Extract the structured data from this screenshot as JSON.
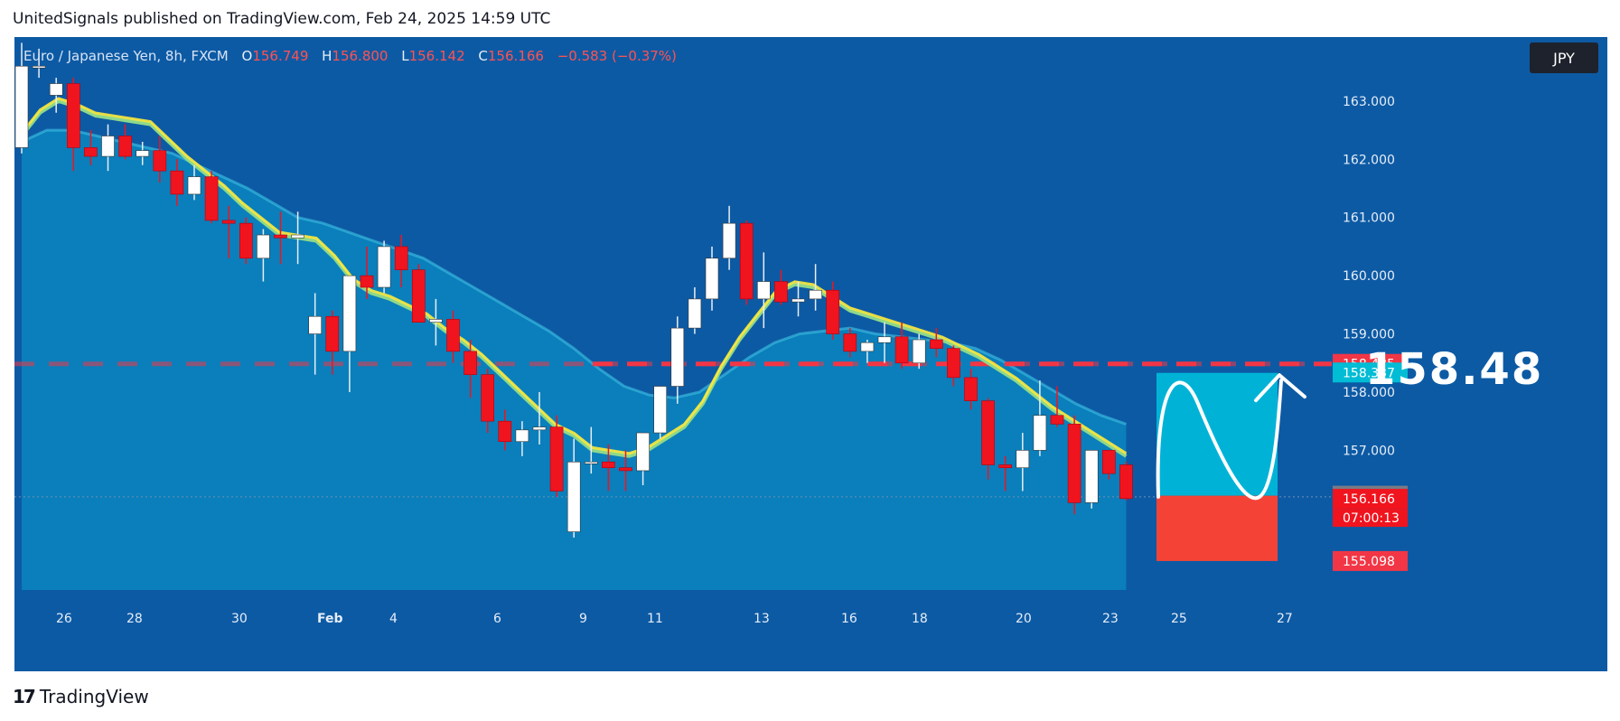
{
  "header": {
    "published_by": "UnitedSignals published on TradingView.com, Feb 24, 2025 14:59 UTC"
  },
  "legend": {
    "symbol": "Euro / Japanese Yen, 8h, FXCM",
    "open_label": "O",
    "open": "156.749",
    "high_label": "H",
    "high": "156.800",
    "low_label": "L",
    "low": "156.142",
    "close_label": "C",
    "close": "156.166",
    "change": "−0.583 (−0.37%)"
  },
  "currency_button": "JPY",
  "projection": {
    "target_label": "158.48"
  },
  "footer": {
    "brand": "TradingView",
    "mark": "17"
  },
  "colors": {
    "panel_bg": "#0d5aa4",
    "cloud_fill": "#0a86bf",
    "cloud_top": "#38b6dd",
    "up_candle": "#ffffff",
    "down_candle": "#f0141e",
    "ema_fast": "#ffeb3b",
    "ema_slow": "#8fd88a",
    "target_line": "#f23645",
    "target_zone": "#00b3d6",
    "stop_zone": "#f44336"
  },
  "chart_data": {
    "type": "candlestick",
    "symbol": "EURJPY",
    "timeframe": "8h",
    "ylim": [
      154.6,
      164.1
    ],
    "y_ticks": [
      "163.000",
      "162.000",
      "161.000",
      "160.000",
      "159.000",
      "158.000",
      "157.000"
    ],
    "x_ticks": [
      "26",
      "28",
      "30",
      "Feb",
      "4",
      "6",
      "9",
      "11",
      "13",
      "16",
      "18",
      "20",
      "23",
      "25",
      "27"
    ],
    "candles": [
      {
        "o": 162.2,
        "h": 164.0,
        "l": 162.1,
        "c": 163.6
      },
      {
        "o": 163.6,
        "h": 163.9,
        "l": 163.4,
        "c": 163.6
      },
      {
        "o": 163.1,
        "h": 163.4,
        "l": 162.8,
        "c": 163.3
      },
      {
        "o": 163.3,
        "h": 163.4,
        "l": 161.8,
        "c": 162.2
      },
      {
        "o": 162.2,
        "h": 162.5,
        "l": 161.9,
        "c": 162.05
      },
      {
        "o": 162.05,
        "h": 162.6,
        "l": 161.8,
        "c": 162.4
      },
      {
        "o": 162.4,
        "h": 162.6,
        "l": 162.0,
        "c": 162.05
      },
      {
        "o": 162.05,
        "h": 162.3,
        "l": 161.9,
        "c": 162.15
      },
      {
        "o": 162.15,
        "h": 162.4,
        "l": 161.6,
        "c": 161.8
      },
      {
        "o": 161.8,
        "h": 162.0,
        "l": 161.2,
        "c": 161.4
      },
      {
        "o": 161.4,
        "h": 161.9,
        "l": 161.3,
        "c": 161.7
      },
      {
        "o": 161.7,
        "h": 161.8,
        "l": 160.9,
        "c": 160.95
      },
      {
        "o": 160.95,
        "h": 161.2,
        "l": 160.3,
        "c": 160.9
      },
      {
        "o": 160.9,
        "h": 161.0,
        "l": 160.2,
        "c": 160.3
      },
      {
        "o": 160.3,
        "h": 160.8,
        "l": 159.9,
        "c": 160.7
      },
      {
        "o": 160.7,
        "h": 161.1,
        "l": 160.2,
        "c": 160.65
      },
      {
        "o": 160.65,
        "h": 161.1,
        "l": 160.2,
        "c": 160.7
      },
      {
        "o": 159.0,
        "h": 159.7,
        "l": 158.3,
        "c": 159.3
      },
      {
        "o": 159.3,
        "h": 159.4,
        "l": 158.3,
        "c": 158.7
      },
      {
        "o": 158.7,
        "h": 160.0,
        "l": 158.0,
        "c": 160.0
      },
      {
        "o": 160.0,
        "h": 160.5,
        "l": 159.6,
        "c": 159.8
      },
      {
        "o": 159.8,
        "h": 160.6,
        "l": 159.7,
        "c": 160.5
      },
      {
        "o": 160.5,
        "h": 160.7,
        "l": 159.8,
        "c": 160.1
      },
      {
        "o": 160.1,
        "h": 160.2,
        "l": 159.2,
        "c": 159.2
      },
      {
        "o": 159.2,
        "h": 159.6,
        "l": 158.8,
        "c": 159.25
      },
      {
        "o": 159.25,
        "h": 159.4,
        "l": 158.5,
        "c": 158.7
      },
      {
        "o": 158.7,
        "h": 158.9,
        "l": 157.9,
        "c": 158.3
      },
      {
        "o": 158.3,
        "h": 158.4,
        "l": 157.3,
        "c": 157.5
      },
      {
        "o": 157.5,
        "h": 157.7,
        "l": 157.0,
        "c": 157.15
      },
      {
        "o": 157.15,
        "h": 157.5,
        "l": 156.9,
        "c": 157.35
      },
      {
        "o": 157.35,
        "h": 158.0,
        "l": 157.1,
        "c": 157.4
      },
      {
        "o": 157.4,
        "h": 157.6,
        "l": 156.2,
        "c": 156.3
      },
      {
        "o": 155.6,
        "h": 157.2,
        "l": 155.5,
        "c": 156.8
      },
      {
        "o": 156.8,
        "h": 157.4,
        "l": 156.6,
        "c": 156.8
      },
      {
        "o": 156.8,
        "h": 157.1,
        "l": 156.3,
        "c": 156.7
      },
      {
        "o": 156.7,
        "h": 157.0,
        "l": 156.3,
        "c": 156.65
      },
      {
        "o": 156.65,
        "h": 157.3,
        "l": 156.4,
        "c": 157.3
      },
      {
        "o": 157.3,
        "h": 158.1,
        "l": 157.2,
        "c": 158.1
      },
      {
        "o": 158.1,
        "h": 159.3,
        "l": 157.8,
        "c": 159.1
      },
      {
        "o": 159.1,
        "h": 159.8,
        "l": 159.0,
        "c": 159.6
      },
      {
        "o": 159.6,
        "h": 160.5,
        "l": 159.4,
        "c": 160.3
      },
      {
        "o": 160.3,
        "h": 161.2,
        "l": 160.1,
        "c": 160.9
      },
      {
        "o": 160.9,
        "h": 160.95,
        "l": 159.5,
        "c": 159.6
      },
      {
        "o": 159.6,
        "h": 160.4,
        "l": 159.1,
        "c": 159.9
      },
      {
        "o": 159.9,
        "h": 160.1,
        "l": 159.5,
        "c": 159.55
      },
      {
        "o": 159.55,
        "h": 159.9,
        "l": 159.3,
        "c": 159.6
      },
      {
        "o": 159.6,
        "h": 160.2,
        "l": 159.4,
        "c": 159.75
      },
      {
        "o": 159.75,
        "h": 159.9,
        "l": 158.9,
        "c": 159.0
      },
      {
        "o": 159.0,
        "h": 159.1,
        "l": 158.6,
        "c": 158.7
      },
      {
        "o": 158.7,
        "h": 158.9,
        "l": 158.5,
        "c": 158.85
      },
      {
        "o": 158.85,
        "h": 159.2,
        "l": 158.5,
        "c": 158.95
      },
      {
        "o": 158.95,
        "h": 159.2,
        "l": 158.4,
        "c": 158.5
      },
      {
        "o": 158.5,
        "h": 159.0,
        "l": 158.4,
        "c": 158.9
      },
      {
        "o": 158.9,
        "h": 159.1,
        "l": 158.6,
        "c": 158.75
      },
      {
        "o": 158.75,
        "h": 158.8,
        "l": 158.1,
        "c": 158.25
      },
      {
        "o": 158.25,
        "h": 158.4,
        "l": 157.7,
        "c": 157.85
      },
      {
        "o": 157.85,
        "h": 157.9,
        "l": 156.5,
        "c": 156.75
      },
      {
        "o": 156.75,
        "h": 156.9,
        "l": 156.3,
        "c": 156.7
      },
      {
        "o": 156.7,
        "h": 157.3,
        "l": 156.3,
        "c": 157.0
      },
      {
        "o": 157.0,
        "h": 158.2,
        "l": 156.9,
        "c": 157.6
      },
      {
        "o": 157.6,
        "h": 158.1,
        "l": 157.4,
        "c": 157.45
      },
      {
        "o": 157.45,
        "h": 157.6,
        "l": 155.9,
        "c": 156.1
      },
      {
        "o": 156.1,
        "h": 157.0,
        "l": 156.0,
        "c": 157.0
      },
      {
        "o": 157.0,
        "h": 157.0,
        "l": 156.5,
        "c": 156.6
      },
      {
        "o": 156.75,
        "h": 156.8,
        "l": 156.14,
        "c": 156.17
      }
    ],
    "ema_fast": [
      162.4,
      162.8,
      163.0,
      162.9,
      162.75,
      162.7,
      162.65,
      162.6,
      162.3,
      162.0,
      161.75,
      161.5,
      161.2,
      160.95,
      160.7,
      160.65,
      160.6,
      160.3,
      159.9,
      159.7,
      159.6,
      159.45,
      159.3,
      159.05,
      158.85,
      158.6,
      158.3,
      158.0,
      157.7,
      157.4,
      157.25,
      157.0,
      156.95,
      156.9,
      157.0,
      157.2,
      157.4,
      157.8,
      158.4,
      158.9,
      159.3,
      159.7,
      159.85,
      159.8,
      159.6,
      159.4,
      159.3,
      159.2,
      159.1,
      159.0,
      158.9,
      158.75,
      158.6,
      158.4,
      158.2,
      157.95,
      157.7,
      157.5,
      157.3,
      157.1,
      156.9
    ],
    "cloud_top": [
      162.3,
      162.5,
      162.5,
      162.4,
      162.3,
      162.2,
      162.1,
      161.9,
      161.7,
      161.5,
      161.25,
      161.0,
      160.9,
      160.75,
      160.6,
      160.45,
      160.3,
      160.05,
      159.8,
      159.55,
      159.3,
      159.05,
      158.75,
      158.4,
      158.1,
      157.95,
      157.9,
      158.0,
      158.3,
      158.6,
      158.85,
      159.0,
      159.05,
      159.1,
      159.0,
      158.95,
      158.9,
      158.85,
      158.75,
      158.55,
      158.3,
      158.05,
      157.8,
      157.6,
      157.45
    ],
    "resistance_level": 158.485,
    "price_labels": [
      {
        "value": "158.485",
        "kind": "target"
      },
      {
        "value": "158.337",
        "kind": "cloud"
      },
      {
        "value": "156.220",
        "kind": "prev"
      },
      {
        "value": "156.166",
        "kind": "last"
      },
      {
        "value": "07:00:13",
        "kind": "countdown"
      },
      {
        "value": "155.098",
        "kind": "stop"
      }
    ],
    "projection_zone": {
      "target_top": 158.33,
      "entry": 156.22,
      "stop": 155.098
    }
  }
}
